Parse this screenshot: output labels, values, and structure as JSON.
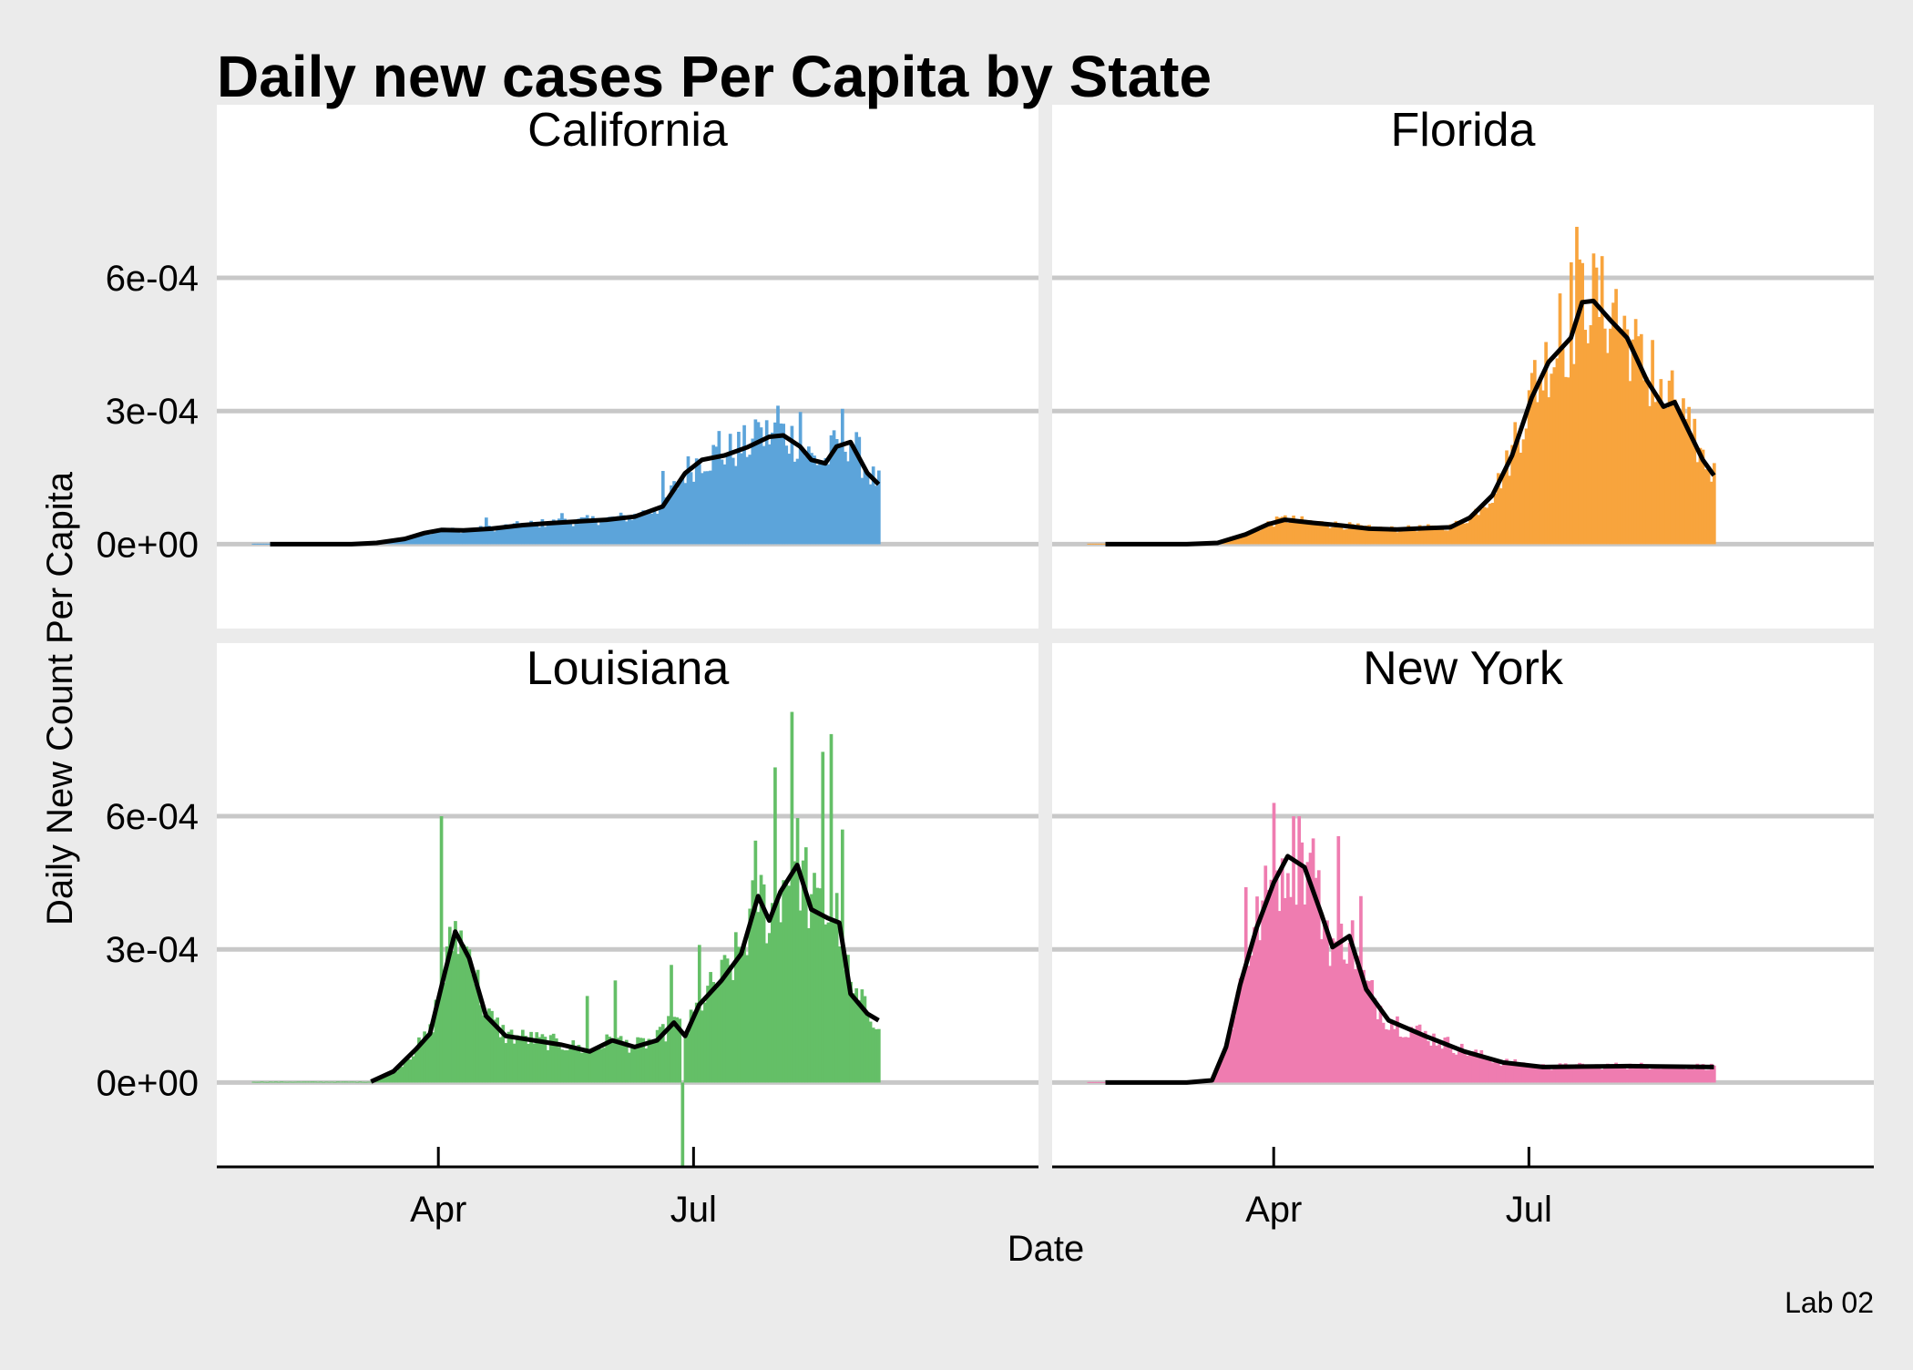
{
  "chart_data": {
    "type": "bar",
    "title": "Daily new cases Per Capita by State",
    "xlabel": "Date",
    "ylabel": "Daily New Count Per Capita",
    "caption": "Lab 02",
    "colors": {
      "panel_background": "#ffffff",
      "plot_background": "#ebebeb",
      "grid": "#c8c8c8",
      "rolling_mean_line": "#000000"
    },
    "x_ticks": [
      {
        "label": "Apr",
        "date": "2020-04-01"
      },
      {
        "label": "Jul",
        "date": "2020-07-01"
      }
    ],
    "y_ticks": [
      {
        "label": "0e+00",
        "value": 0
      },
      {
        "label": "3e-04",
        "value": 0.0003
      },
      {
        "label": "6e-04",
        "value": 0.0006
      }
    ],
    "xlim": [
      "2020-01-13",
      "2020-11-01"
    ],
    "ylim": [
      -0.00019,
      0.00099
    ],
    "grid": true,
    "legend": "none",
    "bar_date_range": [
      "2020-01-26",
      "2020-09-05"
    ],
    "facet_layout": "2x2",
    "facets": [
      {
        "name": "California",
        "color": "#5ca4da",
        "rolling_mean": [
          [
            "2020-02-01",
            0
          ],
          [
            "2020-03-01",
            0
          ],
          [
            "2020-03-10",
            3e-06
          ],
          [
            "2020-03-20",
            1.2e-05
          ],
          [
            "2020-03-27",
            2.5e-05
          ],
          [
            "2020-04-02",
            3.2e-05
          ],
          [
            "2020-04-10",
            3.1e-05
          ],
          [
            "2020-04-20",
            3.5e-05
          ],
          [
            "2020-05-01",
            4.3e-05
          ],
          [
            "2020-05-10",
            4.7e-05
          ],
          [
            "2020-05-20",
            5.1e-05
          ],
          [
            "2020-05-31",
            5.5e-05
          ],
          [
            "2020-06-10",
            6.2e-05
          ],
          [
            "2020-06-20",
            8.5e-05
          ],
          [
            "2020-06-28",
            0.00016
          ],
          [
            "2020-07-04",
            0.00019
          ],
          [
            "2020-07-12",
            0.0002
          ],
          [
            "2020-07-20",
            0.000218
          ],
          [
            "2020-07-28",
            0.000242
          ],
          [
            "2020-08-02",
            0.000245
          ],
          [
            "2020-08-08",
            0.00022
          ],
          [
            "2020-08-12",
            0.00019
          ],
          [
            "2020-08-17",
            0.000182
          ],
          [
            "2020-08-21",
            0.00022
          ],
          [
            "2020-08-26",
            0.00023
          ],
          [
            "2020-09-01",
            0.00016
          ],
          [
            "2020-09-05",
            0.000135
          ]
        ],
        "spikes": [
          [
            "2020-04-18",
            6e-05
          ],
          [
            "2020-05-15",
            7e-05
          ],
          [
            "2020-06-20",
            0.000165
          ],
          [
            "2020-07-10",
            0.000255
          ],
          [
            "2020-07-24",
            0.000275
          ],
          [
            "2020-07-31",
            0.000312
          ],
          [
            "2020-08-08",
            0.000298
          ],
          [
            "2020-08-23",
            0.000305
          ],
          [
            "2020-09-03",
            0.000175
          ]
        ]
      },
      {
        "name": "Florida",
        "color": "#f8a43d",
        "rolling_mean": [
          [
            "2020-02-01",
            0
          ],
          [
            "2020-03-01",
            0
          ],
          [
            "2020-03-12",
            3e-06
          ],
          [
            "2020-03-22",
            2.2e-05
          ],
          [
            "2020-03-30",
            4.5e-05
          ],
          [
            "2020-04-05",
            5.5e-05
          ],
          [
            "2020-04-15",
            4.8e-05
          ],
          [
            "2020-04-25",
            4.2e-05
          ],
          [
            "2020-05-05",
            3.5e-05
          ],
          [
            "2020-05-15",
            3.3e-05
          ],
          [
            "2020-05-25",
            3.6e-05
          ],
          [
            "2020-06-03",
            3.8e-05
          ],
          [
            "2020-06-10",
            6e-05
          ],
          [
            "2020-06-18",
            0.00011
          ],
          [
            "2020-06-25",
            0.0002
          ],
          [
            "2020-07-02",
            0.00033
          ],
          [
            "2020-07-08",
            0.00041
          ],
          [
            "2020-07-16",
            0.000465
          ],
          [
            "2020-07-20",
            0.000545
          ],
          [
            "2020-07-24",
            0.000548
          ],
          [
            "2020-07-30",
            0.000505
          ],
          [
            "2020-08-05",
            0.000465
          ],
          [
            "2020-08-12",
            0.00037
          ],
          [
            "2020-08-18",
            0.00031
          ],
          [
            "2020-08-22",
            0.00032
          ],
          [
            "2020-09-01",
            0.00019
          ],
          [
            "2020-09-05",
            0.000155
          ]
        ],
        "spikes": [
          [
            "2020-04-05",
            6.5e-05
          ],
          [
            "2020-06-26",
            0.000275
          ],
          [
            "2020-07-03",
            0.000415
          ],
          [
            "2020-07-12",
            0.000565
          ],
          [
            "2020-07-16",
            0.000635
          ],
          [
            "2020-07-18",
            0.000715
          ],
          [
            "2020-07-24",
            0.000655
          ],
          [
            "2020-08-01",
            0.000575
          ],
          [
            "2020-08-14",
            0.00046
          ],
          [
            "2020-08-28",
            0.000245
          ]
        ]
      },
      {
        "name": "Louisiana",
        "color": "#64bf67",
        "rolling_mean": [
          [
            "2020-03-08",
            2e-06
          ],
          [
            "2020-03-16",
            2.5e-05
          ],
          [
            "2020-03-24",
            7.5e-05
          ],
          [
            "2020-03-29",
            0.00011
          ],
          [
            "2020-04-03",
            0.00024
          ],
          [
            "2020-04-07",
            0.00034
          ],
          [
            "2020-04-12",
            0.00028
          ],
          [
            "2020-04-18",
            0.00015
          ],
          [
            "2020-04-25",
            0.000105
          ],
          [
            "2020-05-05",
            9.5e-05
          ],
          [
            "2020-05-15",
            8.5e-05
          ],
          [
            "2020-05-25",
            7e-05
          ],
          [
            "2020-06-02",
            9.5e-05
          ],
          [
            "2020-06-10",
            8e-05
          ],
          [
            "2020-06-18",
            9.5e-05
          ],
          [
            "2020-06-24",
            0.000135
          ],
          [
            "2020-06-28",
            0.000105
          ],
          [
            "2020-07-03",
            0.000175
          ],
          [
            "2020-07-11",
            0.00023
          ],
          [
            "2020-07-18",
            0.00029
          ],
          [
            "2020-07-24",
            0.00042
          ],
          [
            "2020-07-28",
            0.000365
          ],
          [
            "2020-08-01",
            0.00043
          ],
          [
            "2020-08-07",
            0.00049
          ],
          [
            "2020-08-12",
            0.00039
          ],
          [
            "2020-08-18",
            0.00037
          ],
          [
            "2020-08-22",
            0.00036
          ],
          [
            "2020-08-26",
            0.0002
          ],
          [
            "2020-09-01",
            0.000155
          ],
          [
            "2020-09-05",
            0.00014
          ]
        ],
        "spikes": [
          [
            "2020-04-02",
            0.0006
          ],
          [
            "2020-04-12",
            0.0003
          ],
          [
            "2020-05-24",
            0.000195
          ],
          [
            "2020-06-03",
            0.00023
          ],
          [
            "2020-06-23",
            0.000265
          ],
          [
            "2020-06-27",
            -0.00019
          ],
          [
            "2020-07-03",
            0.00031
          ],
          [
            "2020-07-23",
            0.000545
          ],
          [
            "2020-07-30",
            0.00071
          ],
          [
            "2020-08-05",
            0.000835
          ],
          [
            "2020-08-10",
            0.00053
          ],
          [
            "2020-08-16",
            0.000745
          ],
          [
            "2020-08-19",
            0.000785
          ],
          [
            "2020-08-23",
            0.00057
          ]
        ]
      },
      {
        "name": "New York",
        "color": "#ef7cb0",
        "rolling_mean": [
          [
            "2020-02-01",
            0
          ],
          [
            "2020-03-01",
            0
          ],
          [
            "2020-03-10",
            5e-06
          ],
          [
            "2020-03-15",
            8e-05
          ],
          [
            "2020-03-20",
            0.00022
          ],
          [
            "2020-03-26",
            0.00035
          ],
          [
            "2020-04-01",
            0.00045
          ],
          [
            "2020-04-06",
            0.00051
          ],
          [
            "2020-04-12",
            0.000485
          ],
          [
            "2020-04-18",
            0.00038
          ],
          [
            "2020-04-22",
            0.000305
          ],
          [
            "2020-04-28",
            0.00033
          ],
          [
            "2020-05-04",
            0.00021
          ],
          [
            "2020-05-12",
            0.00014
          ],
          [
            "2020-05-25",
            0.000105
          ],
          [
            "2020-06-08",
            7e-05
          ],
          [
            "2020-06-22",
            4.5e-05
          ],
          [
            "2020-07-06",
            3.5e-05
          ],
          [
            "2020-07-20",
            3.6e-05
          ],
          [
            "2020-08-05",
            3.7e-05
          ],
          [
            "2020-08-20",
            3.6e-05
          ],
          [
            "2020-09-05",
            3.5e-05
          ]
        ],
        "spikes": [
          [
            "2020-03-22",
            0.00044
          ],
          [
            "2020-04-01",
            0.00063
          ],
          [
            "2020-04-04",
            0.000505
          ],
          [
            "2020-04-10",
            0.0006
          ],
          [
            "2020-04-15",
            0.00055
          ],
          [
            "2020-04-24",
            0.000555
          ],
          [
            "2020-05-02",
            0.00042
          ]
        ]
      }
    ]
  }
}
